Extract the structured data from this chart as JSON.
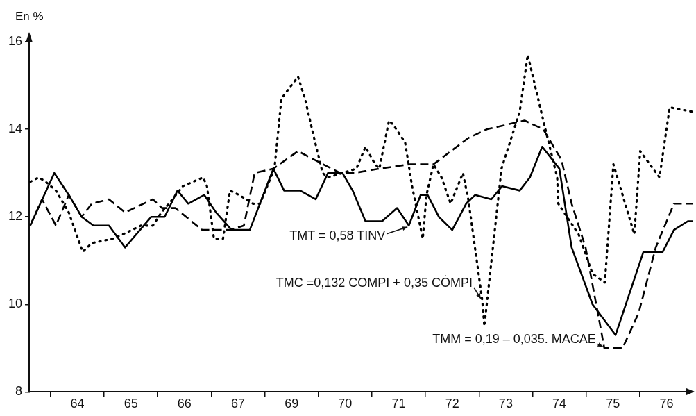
{
  "chart_data": {
    "type": "line",
    "ylabel": "En %",
    "xlim": [
      63.6,
      76.0
    ],
    "xticks": [
      {
        "value": 64,
        "label": null
      },
      {
        "value": 64.5,
        "label": "64"
      },
      {
        "value": 65,
        "label": null
      },
      {
        "value": 65.5,
        "label": "65"
      },
      {
        "value": 66,
        "label": null
      },
      {
        "value": 66.5,
        "label": "66"
      },
      {
        "value": 67,
        "label": null
      },
      {
        "value": 67.5,
        "label": "67"
      },
      {
        "value": 68,
        "label": null
      },
      {
        "value": 68.5,
        "label": "69"
      },
      {
        "value": 69,
        "label": null
      },
      {
        "value": 69.5,
        "label": "70"
      },
      {
        "value": 70,
        "label": null
      },
      {
        "value": 70.5,
        "label": "71"
      },
      {
        "value": 71,
        "label": null
      },
      {
        "value": 71.5,
        "label": "72"
      },
      {
        "value": 72,
        "label": null
      },
      {
        "value": 72.5,
        "label": "73"
      },
      {
        "value": 73,
        "label": null
      },
      {
        "value": 73.5,
        "label": "74"
      },
      {
        "value": 74,
        "label": null
      },
      {
        "value": 74.5,
        "label": "75"
      },
      {
        "value": 75,
        "label": null
      },
      {
        "value": 75.5,
        "label": "76"
      }
    ],
    "ylim": [
      8,
      16
    ],
    "yticks": [
      8,
      10,
      12,
      14,
      16
    ],
    "grid": false,
    "legend": false,
    "marker": "none",
    "series": [
      {
        "name": "TMT = 0,58 TINV",
        "color": "#000000",
        "line_style": "solid",
        "x": [
          63.62,
          64.07,
          64.34,
          64.58,
          64.8,
          65.09,
          65.39,
          65.88,
          66.13,
          66.37,
          66.57,
          66.87,
          67.09,
          67.38,
          67.72,
          68.16,
          68.36,
          68.66,
          68.95,
          69.18,
          69.45,
          69.64,
          69.88,
          70.19,
          70.47,
          70.69,
          70.91,
          71.04,
          71.25,
          71.5,
          71.76,
          71.93,
          72.23,
          72.43,
          72.76,
          72.95,
          73.18,
          73.5,
          73.73,
          74.12,
          74.55,
          75.07,
          75.43,
          75.64,
          75.9,
          76.0
        ],
        "values": [
          11.8,
          13.0,
          12.5,
          12.0,
          11.8,
          11.8,
          11.3,
          12.0,
          12.0,
          12.6,
          12.3,
          12.5,
          12.1,
          11.7,
          11.7,
          13.1,
          12.6,
          12.6,
          12.4,
          13.0,
          13.0,
          12.6,
          11.9,
          11.9,
          12.2,
          11.8,
          12.5,
          12.5,
          12.0,
          11.7,
          12.3,
          12.5,
          12.4,
          12.7,
          12.6,
          12.9,
          13.6,
          13.1,
          11.3,
          10.0,
          9.3,
          11.2,
          11.2,
          11.7,
          11.9,
          11.9
        ]
      },
      {
        "name": "TMC =0,132 COMPI + 0,35 CȮMPI",
        "color": "#000000",
        "line_style": "dotted",
        "x": [
          63.62,
          63.78,
          63.91,
          64.1,
          64.34,
          64.6,
          64.77,
          65.16,
          65.35,
          65.69,
          65.91,
          66.07,
          66.21,
          66.47,
          66.85,
          66.92,
          67.05,
          67.22,
          67.35,
          67.52,
          67.78,
          67.91,
          68.18,
          68.27,
          68.31,
          68.62,
          68.75,
          68.92,
          69.08,
          69.18,
          69.45,
          69.71,
          69.88,
          70.06,
          70.14,
          70.32,
          70.4,
          70.62,
          70.75,
          70.95,
          71.02,
          71.15,
          71.3,
          71.47,
          71.7,
          71.8,
          72.06,
          72.1,
          72.42,
          72.76,
          72.91,
          73.2,
          73.46,
          73.48,
          73.86,
          74.12,
          74.35,
          74.51,
          74.9,
          75.01,
          75.37,
          75.56,
          75.99
        ],
        "values": [
          12.8,
          12.9,
          12.8,
          12.6,
          12.1,
          11.2,
          11.4,
          11.5,
          11.6,
          11.8,
          11.8,
          12.1,
          12.3,
          12.7,
          12.9,
          12.7,
          11.5,
          11.5,
          12.6,
          12.5,
          12.3,
          12.3,
          13.1,
          14.2,
          14.7,
          15.2,
          14.7,
          13.8,
          13.0,
          12.9,
          13.0,
          13.1,
          13.6,
          13.2,
          13.1,
          14.2,
          14.1,
          13.7,
          12.7,
          11.5,
          12.5,
          13.2,
          12.9,
          12.3,
          13.0,
          12.4,
          10.1,
          9.5,
          13.1,
          14.4,
          15.7,
          14.2,
          12.9,
          12.3,
          11.6,
          10.7,
          10.5,
          13.2,
          11.6,
          13.5,
          12.9,
          14.5,
          14.4
        ]
      },
      {
        "name": "TMM = 0,19 – 0,035. MACAE",
        "color": "#000000",
        "line_style": "dashed",
        "x": [
          63.62,
          63.84,
          64.1,
          64.34,
          64.58,
          64.77,
          65.09,
          65.39,
          65.91,
          66.08,
          66.33,
          66.83,
          67.35,
          67.61,
          67.81,
          68.16,
          68.62,
          69.09,
          69.41,
          69.67,
          70.14,
          70.71,
          71.15,
          71.8,
          72.15,
          72.85,
          73.2,
          73.54,
          73.73,
          73.99,
          74.25,
          74.34,
          74.68,
          74.98,
          75.3,
          75.64,
          75.99
        ],
        "values": [
          11.8,
          12.4,
          11.8,
          12.5,
          12.0,
          12.3,
          12.4,
          12.1,
          12.4,
          12.2,
          12.2,
          11.7,
          11.7,
          11.8,
          13.0,
          13.1,
          13.5,
          13.2,
          13.0,
          13.0,
          13.1,
          13.2,
          13.2,
          13.8,
          14.0,
          14.2,
          14.0,
          13.3,
          12.3,
          11.3,
          9.6,
          9.0,
          9.0,
          9.8,
          11.3,
          12.3,
          12.3
        ]
      }
    ]
  }
}
